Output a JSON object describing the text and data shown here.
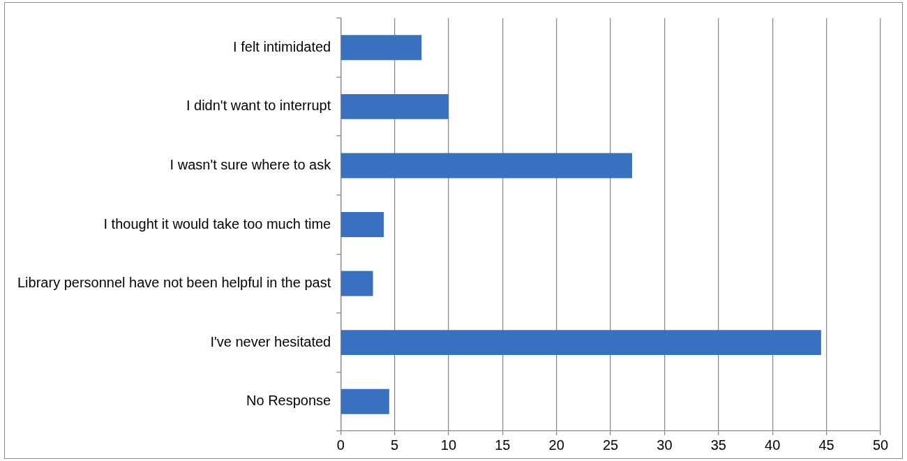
{
  "chart_data": {
    "type": "bar",
    "orientation": "horizontal",
    "categories": [
      "I felt intimidated",
      "I didn't want to interrupt",
      "I wasn't sure where to ask",
      "I thought it would take too much time",
      "Library personnel have not been helpful in the past",
      "I've never hesitated",
      "No Response"
    ],
    "values": [
      7.5,
      10,
      27,
      4,
      3,
      44.5,
      4.5
    ],
    "color": "#3a70c0",
    "xlim": [
      0,
      50
    ],
    "xticks": [
      0,
      5,
      10,
      15,
      20,
      25,
      30,
      35,
      40,
      45,
      50
    ],
    "grid": "x",
    "legend": false
  }
}
